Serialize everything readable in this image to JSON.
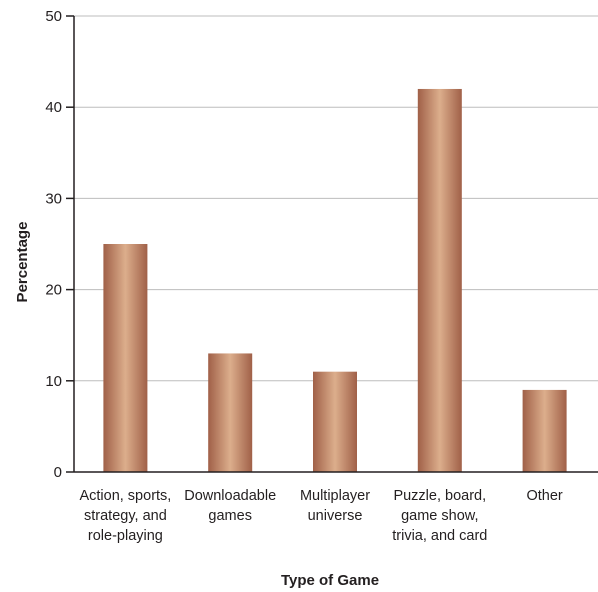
{
  "chart_data": {
    "type": "bar",
    "title": "",
    "xlabel": "Type of Game",
    "ylabel": "Percentage",
    "categories": [
      [
        "Action, sports,",
        "strategy, and",
        "role-playing"
      ],
      [
        "Downloadable",
        "games"
      ],
      [
        "Multiplayer",
        "universe"
      ],
      [
        "Puzzle, board,",
        "game show,",
        "trivia, and card"
      ],
      [
        "Other"
      ]
    ],
    "values": [
      25,
      13,
      11,
      42,
      9
    ],
    "ylim": [
      0,
      50
    ],
    "yticks": [
      0,
      10,
      20,
      30,
      40,
      50
    ],
    "grid": true,
    "legend": "none",
    "colors": {
      "bar_edge": "#a06048",
      "bar_mid": "#dcae8c",
      "grid": "#bdbdbd",
      "axis": "#231f20"
    }
  }
}
